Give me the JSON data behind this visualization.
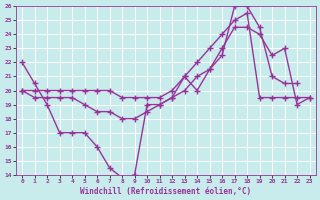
{
  "xlabel": "Windchill (Refroidissement éolien,°C)",
  "xlim": [
    -0.5,
    23.5
  ],
  "ylim": [
    14,
    26
  ],
  "yticks": [
    14,
    15,
    16,
    17,
    18,
    19,
    20,
    21,
    22,
    23,
    24,
    25,
    26
  ],
  "xticks": [
    0,
    1,
    2,
    3,
    4,
    5,
    6,
    7,
    8,
    9,
    10,
    11,
    12,
    13,
    14,
    15,
    16,
    17,
    18,
    19,
    20,
    21,
    22,
    23
  ],
  "bg_color": "#c8ecec",
  "grid_color": "#ffffff",
  "line_color": "#993399",
  "line_width": 1.0,
  "marker": "+",
  "marker_size": 4,
  "series": [
    {
      "x": [
        0,
        1,
        2,
        3,
        4,
        5,
        6,
        7,
        8,
        9,
        10,
        11,
        12,
        13,
        14,
        15,
        16,
        17,
        18,
        19,
        20,
        21,
        22
      ],
      "y": [
        22.0,
        20.5,
        19.0,
        17.0,
        17.0,
        17.0,
        16.0,
        14.5,
        13.8,
        14.0,
        19.0,
        19.0,
        19.5,
        21.0,
        20.0,
        21.5,
        22.5,
        26.0,
        26.0,
        24.5,
        21.0,
        20.5,
        20.5
      ]
    },
    {
      "x": [
        0,
        1,
        2,
        3,
        4,
        5,
        6,
        7,
        8,
        9,
        10,
        11,
        12,
        13,
        14,
        15,
        16,
        17,
        18,
        19,
        20,
        21,
        22,
        23
      ],
      "y": [
        20.0,
        20.0,
        20.0,
        20.0,
        20.0,
        20.0,
        20.0,
        20.0,
        19.5,
        19.5,
        19.5,
        19.5,
        20.0,
        21.0,
        22.0,
        23.0,
        24.0,
        25.0,
        25.5,
        19.5,
        19.5,
        19.5,
        19.5,
        19.5
      ]
    },
    {
      "x": [
        0,
        1,
        2,
        3,
        4,
        5,
        6,
        7,
        8,
        9,
        10,
        11,
        12,
        13,
        14,
        15,
        16,
        17,
        18,
        19,
        20,
        21,
        22,
        23
      ],
      "y": [
        20.0,
        19.5,
        19.5,
        19.5,
        19.5,
        19.0,
        18.5,
        18.5,
        18.0,
        18.0,
        18.5,
        19.0,
        19.5,
        20.0,
        21.0,
        21.5,
        23.0,
        24.5,
        24.5,
        24.0,
        22.5,
        23.0,
        19.0,
        19.5
      ]
    }
  ]
}
